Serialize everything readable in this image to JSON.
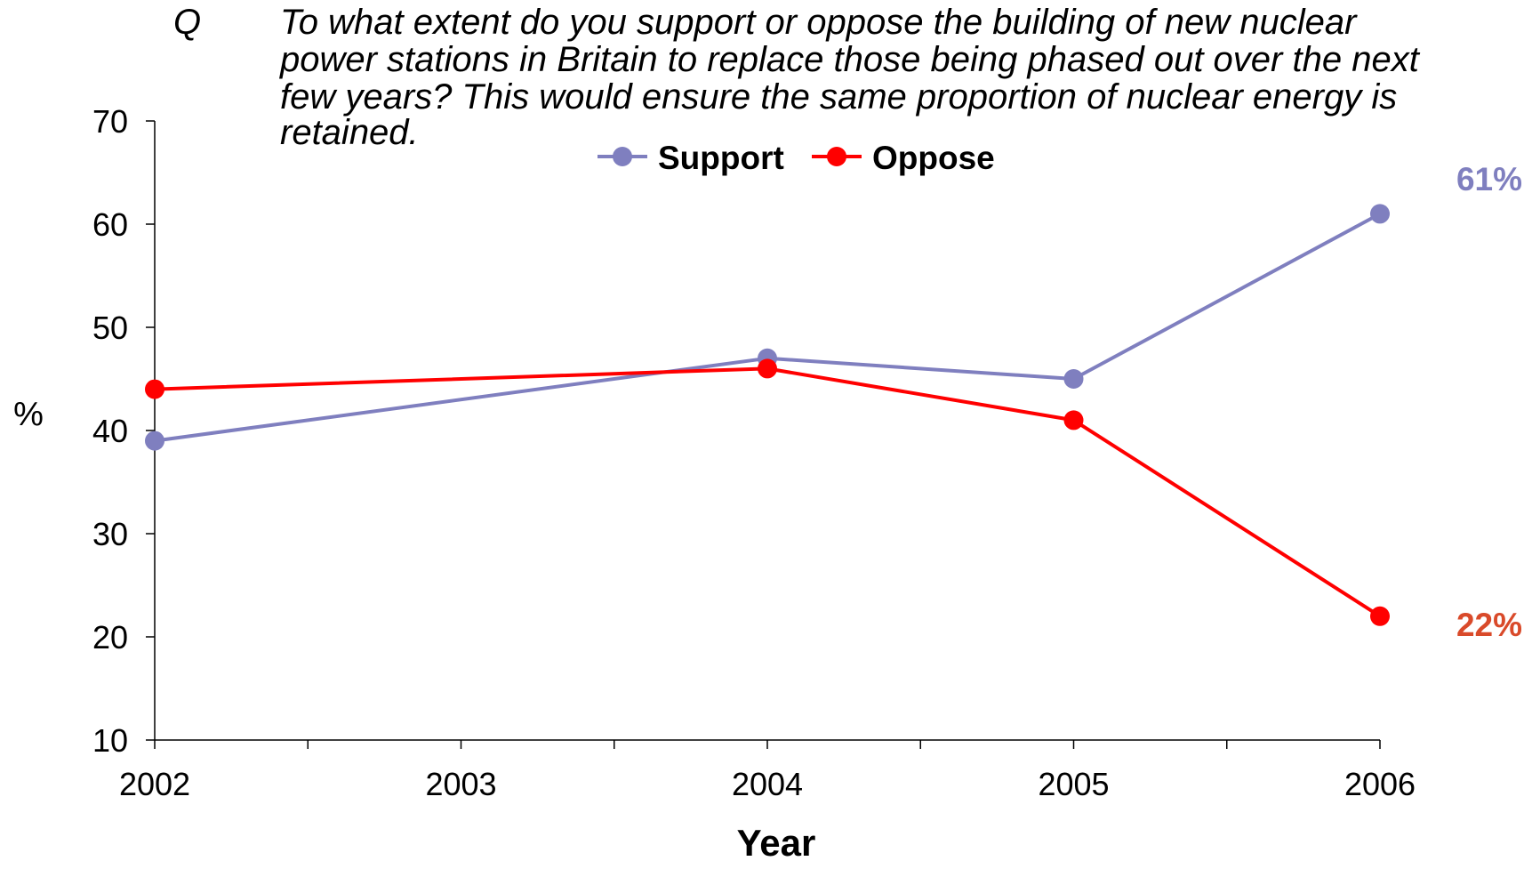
{
  "question": {
    "label": "Q",
    "lines": [
      "To what extent do you support or oppose the building of new nuclear",
      "power stations in Britain to replace those being phased out over the next",
      "few years?  This would ensure the same proportion of nuclear energy is",
      "retained."
    ]
  },
  "colors": {
    "support": "#7f7fbf",
    "oppose": "#ff0000",
    "support_label": "#7f7fbf",
    "oppose_label": "#d94a2a"
  },
  "chart_data": {
    "type": "line",
    "x": [
      2002,
      2004,
      2005,
      2006
    ],
    "x_ticks": [
      "2002",
      "2003",
      "2004",
      "2005",
      "2006"
    ],
    "xlim": [
      2002,
      2006
    ],
    "ylim": [
      10,
      70
    ],
    "y_ticks": [
      "10",
      "20",
      "30",
      "40",
      "50",
      "60",
      "70"
    ],
    "xlabel": "Year",
    "ylabel": "%",
    "legend_position": "top-center",
    "grid": false,
    "series": [
      {
        "name": "Support",
        "values": [
          39,
          47,
          45,
          61
        ],
        "end_label": "61%"
      },
      {
        "name": "Oppose",
        "values": [
          44,
          46,
          41,
          22
        ],
        "end_label": "22%"
      }
    ]
  }
}
